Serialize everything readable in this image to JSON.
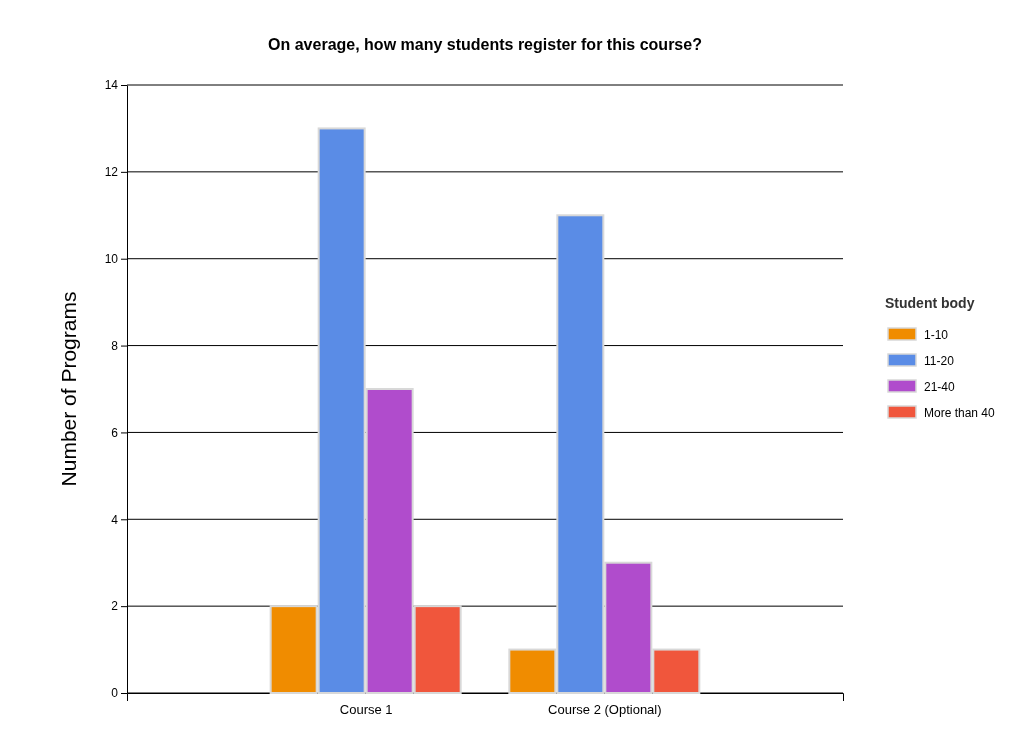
{
  "chart_data": {
    "type": "bar",
    "title": "On average, how many students register for this course?",
    "ylabel": "Number of  Programs",
    "legend_title": "Student body",
    "categories": [
      "Course 1",
      "Course 2 (Optional)"
    ],
    "series": [
      {
        "name": "1-10",
        "color": "#f08c00",
        "values": [
          2,
          1
        ]
      },
      {
        "name": "11-20",
        "color": "#5a8ce6",
        "values": [
          13,
          11
        ]
      },
      {
        "name": "21-40",
        "color": "#b04ccc",
        "values": [
          7,
          3
        ]
      },
      {
        "name": "More than 40",
        "color": "#f0563c",
        "values": [
          2,
          1
        ]
      }
    ],
    "ylim": [
      0,
      14
    ],
    "yticks": [
      0,
      2,
      4,
      6,
      8,
      10,
      12,
      14
    ],
    "grid": "y",
    "legend": "right"
  }
}
